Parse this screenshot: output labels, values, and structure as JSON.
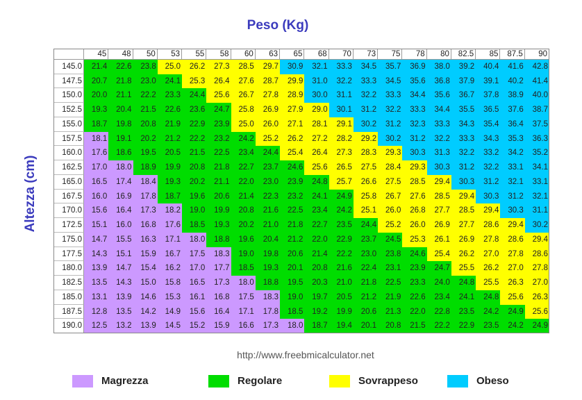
{
  "chart_data": {
    "type": "heatmap",
    "xlabel": "Peso (Kg)",
    "ylabel": "Altezza (cm)",
    "x": [
      "45",
      "48",
      "50",
      "53",
      "55",
      "58",
      "60",
      "63",
      "65",
      "68",
      "70",
      "73",
      "75",
      "78",
      "80",
      "82.5",
      "85",
      "87.5",
      "90"
    ],
    "y": [
      "145.0",
      "147.5",
      "150.0",
      "152.5",
      "155.0",
      "157.5",
      "160.0",
      "162.5",
      "165.0",
      "167.5",
      "170.0",
      "172.5",
      "175.0",
      "177.5",
      "180.0",
      "182.5",
      "185.0",
      "187.5",
      "190.0"
    ],
    "values": [
      [
        "21.4",
        "22.6",
        "23.8",
        "25.0",
        "26.2",
        "27.3",
        "28.5",
        "29.7",
        "30.9",
        "32.1",
        "33.3",
        "34.5",
        "35.7",
        "36.9",
        "38.0",
        "39.2",
        "40.4",
        "41.6",
        "42.8"
      ],
      [
        "20.7",
        "21.8",
        "23.0",
        "24.1",
        "25.3",
        "26.4",
        "27.6",
        "28.7",
        "29.9",
        "31.0",
        "32.2",
        "33.3",
        "34.5",
        "35.6",
        "36.8",
        "37.9",
        "39.1",
        "40.2",
        "41.4"
      ],
      [
        "20.0",
        "21.1",
        "22.2",
        "23.3",
        "24.4",
        "25.6",
        "26.7",
        "27.8",
        "28.9",
        "30.0",
        "31.1",
        "32.2",
        "33.3",
        "34.4",
        "35.6",
        "36.7",
        "37.8",
        "38.9",
        "40.0"
      ],
      [
        "19.3",
        "20.4",
        "21.5",
        "22.6",
        "23.6",
        "24.7",
        "25.8",
        "26.9",
        "27.9",
        "29.0",
        "30.1",
        "31.2",
        "32.2",
        "33.3",
        "34.4",
        "35.5",
        "36.5",
        "37.6",
        "38.7"
      ],
      [
        "18.7",
        "19.8",
        "20.8",
        "21.9",
        "22.9",
        "23.9",
        "25.0",
        "26.0",
        "27.1",
        "28.1",
        "29.1",
        "30.2",
        "31.2",
        "32.3",
        "33.3",
        "34.3",
        "35.4",
        "36.4",
        "37.5"
      ],
      [
        "18.1",
        "19.1",
        "20.2",
        "21.2",
        "22.2",
        "23.2",
        "24.2",
        "25.2",
        "26.2",
        "27.2",
        "28.2",
        "29.2",
        "30.2",
        "31.2",
        "32.2",
        "33.3",
        "34.3",
        "35.3",
        "36.3"
      ],
      [
        "17.6",
        "18.6",
        "19.5",
        "20.5",
        "21.5",
        "22.5",
        "23.4",
        "24.4",
        "25.4",
        "26.4",
        "27.3",
        "28.3",
        "29.3",
        "30.3",
        "31.3",
        "32.2",
        "33.2",
        "34.2",
        "35.2"
      ],
      [
        "17.0",
        "18.0",
        "18.9",
        "19.9",
        "20.8",
        "21.8",
        "22.7",
        "23.7",
        "24.6",
        "25.6",
        "26.5",
        "27.5",
        "28.4",
        "29.3",
        "30.3",
        "31.2",
        "32.2",
        "33.1",
        "34.1"
      ],
      [
        "16.5",
        "17.4",
        "18.4",
        "19.3",
        "20.2",
        "21.1",
        "22.0",
        "23.0",
        "23.9",
        "24.8",
        "25.7",
        "26.6",
        "27.5",
        "28.5",
        "29.4",
        "30.3",
        "31.2",
        "32.1",
        "33.1"
      ],
      [
        "16.0",
        "16.9",
        "17.8",
        "18.7",
        "19.6",
        "20.6",
        "21.4",
        "22.3",
        "23.2",
        "24.1",
        "24.9",
        "25.8",
        "26.7",
        "27.6",
        "28.5",
        "29.4",
        "30.3",
        "31.2",
        "32.1"
      ],
      [
        "15.6",
        "16.4",
        "17.3",
        "18.2",
        "19.0",
        "19.9",
        "20.8",
        "21.6",
        "22.5",
        "23.4",
        "24.2",
        "25.1",
        "26.0",
        "26.8",
        "27.7",
        "28.5",
        "29.4",
        "30.3",
        "31.1"
      ],
      [
        "15.1",
        "16.0",
        "16.8",
        "17.6",
        "18.5",
        "19.3",
        "20.2",
        "21.0",
        "21.8",
        "22.7",
        "23.5",
        "24.4",
        "25.2",
        "26.0",
        "26.9",
        "27.7",
        "28.6",
        "29.4",
        "30.2"
      ],
      [
        "14.7",
        "15.5",
        "16.3",
        "17.1",
        "18.0",
        "18.8",
        "19.6",
        "20.4",
        "21.2",
        "22.0",
        "22.9",
        "23.7",
        "24.5",
        "25.3",
        "26.1",
        "26.9",
        "27.8",
        "28.6",
        "29.4"
      ],
      [
        "14.3",
        "15.1",
        "15.9",
        "16.7",
        "17.5",
        "18.3",
        "19.0",
        "19.8",
        "20.6",
        "21.4",
        "22.2",
        "23.0",
        "23.8",
        "24.6",
        "25.4",
        "26.2",
        "27.0",
        "27.8",
        "28.6"
      ],
      [
        "13.9",
        "14.7",
        "15.4",
        "16.2",
        "17.0",
        "17.7",
        "18.5",
        "19.3",
        "20.1",
        "20.8",
        "21.6",
        "22.4",
        "23.1",
        "23.9",
        "24.7",
        "25.5",
        "26.2",
        "27.0",
        "27.8"
      ],
      [
        "13.5",
        "14.3",
        "15.0",
        "15.8",
        "16.5",
        "17.3",
        "18.0",
        "18.8",
        "19.5",
        "20.3",
        "21.0",
        "21.8",
        "22.5",
        "23.3",
        "24.0",
        "24.8",
        "25.5",
        "26.3",
        "27.0"
      ],
      [
        "13.1",
        "13.9",
        "14.6",
        "15.3",
        "16.1",
        "16.8",
        "17.5",
        "18.3",
        "19.0",
        "19.7",
        "20.5",
        "21.2",
        "21.9",
        "22.6",
        "23.4",
        "24.1",
        "24.8",
        "25.6",
        "26.3"
      ],
      [
        "12.8",
        "13.5",
        "14.2",
        "14.9",
        "15.6",
        "16.4",
        "17.1",
        "17.8",
        "18.5",
        "19.2",
        "19.9",
        "20.6",
        "21.3",
        "22.0",
        "22.8",
        "23.5",
        "24.2",
        "24.9",
        "25.6"
      ],
      [
        "12.5",
        "13.2",
        "13.9",
        "14.5",
        "15.2",
        "15.9",
        "16.6",
        "17.3",
        "18.0",
        "18.7",
        "19.4",
        "20.1",
        "20.8",
        "21.5",
        "22.2",
        "22.9",
        "23.5",
        "24.2",
        "24.9"
      ]
    ],
    "categories": [
      {
        "name": "Magrezza",
        "color": "#cc99ff"
      },
      {
        "name": "Regolare",
        "color": "#00dd00"
      },
      {
        "name": "Sovrappeso",
        "color": "#ffff00"
      },
      {
        "name": "Obeso",
        "color": "#00ccff"
      }
    ],
    "thresholds": [
      18.5,
      25,
      30
    ],
    "legend_position": "bottom"
  },
  "source_url": "http://www.freebmicalculator.net"
}
